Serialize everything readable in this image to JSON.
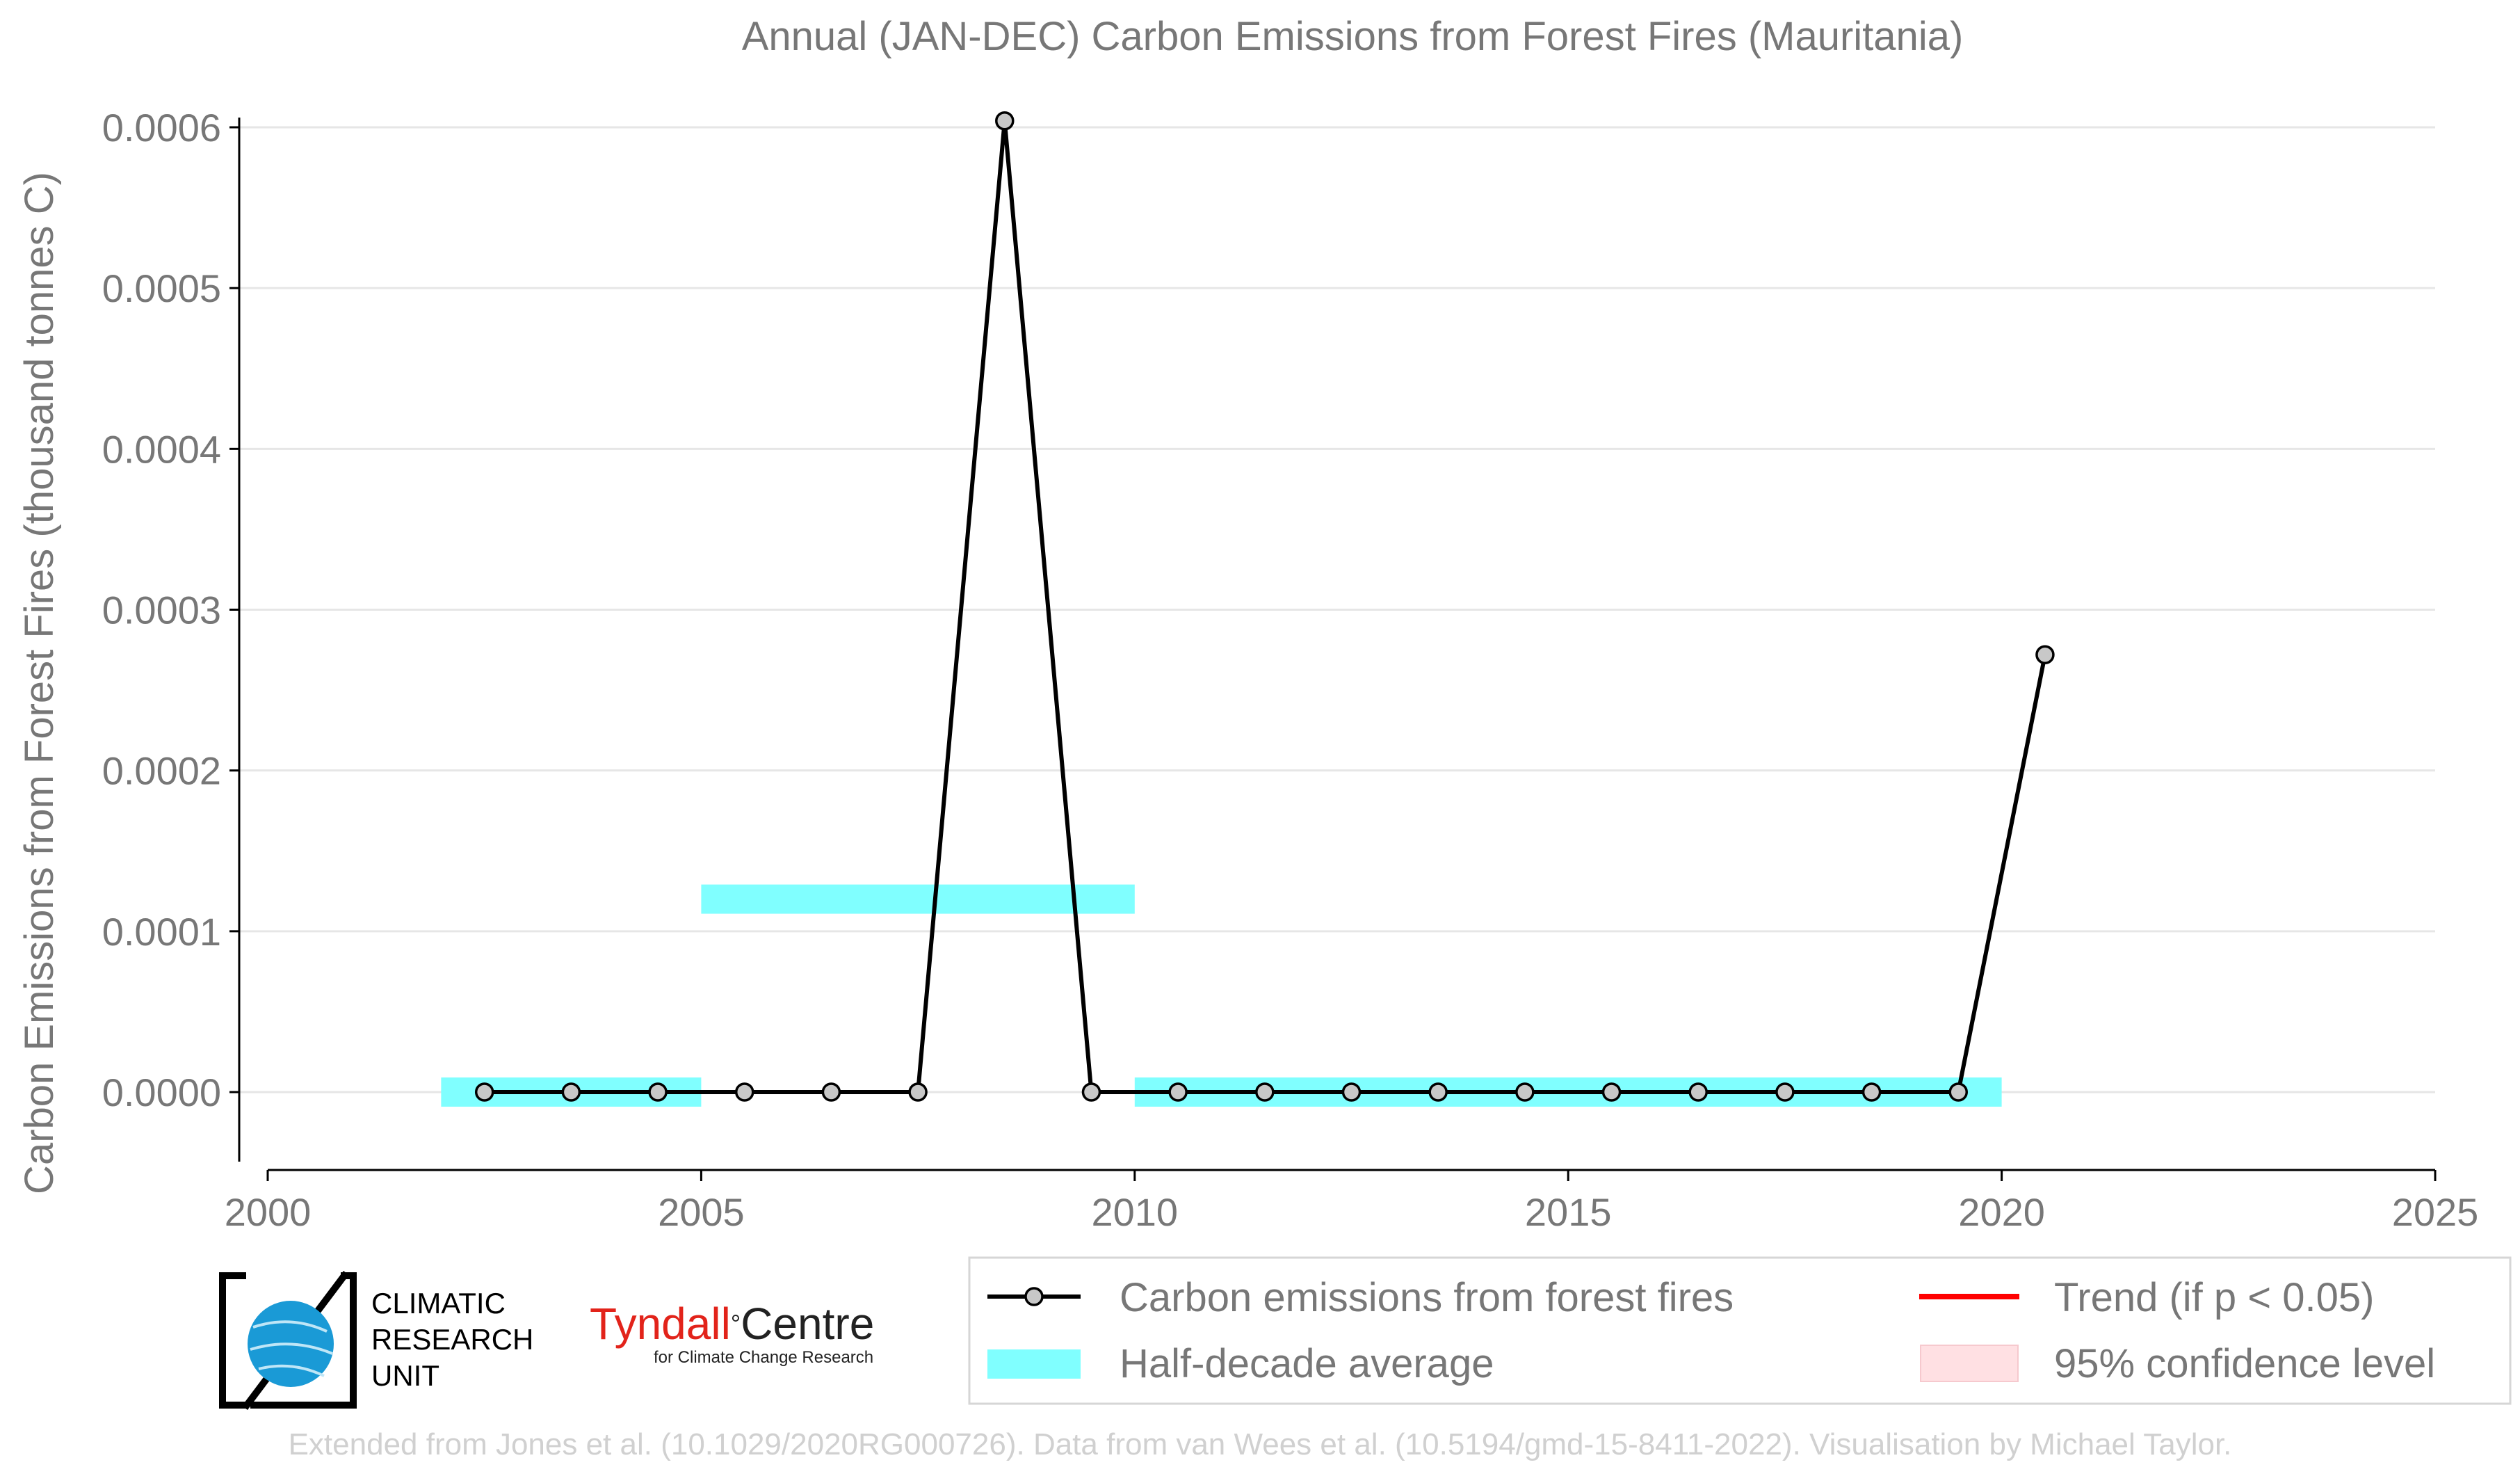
{
  "chart_data": {
    "type": "line",
    "title": "Annual (JAN-DEC) Carbon Emissions from Forest Fires (Mauritania)",
    "xlabel": "",
    "ylabel": "Carbon Emissions from Forest Fires (thousand tonnes C)",
    "xlim": [
      2000,
      2025
    ],
    "ylim": [
      -5e-05,
      0.00061
    ],
    "x_ticks": [
      "2000",
      "2005",
      "2010",
      "2015",
      "2020",
      "2025"
    ],
    "y_ticks": [
      "0.0000",
      "0.0001",
      "0.0002",
      "0.0003",
      "0.0004",
      "0.0005",
      "0.0006"
    ],
    "grid": "horizontal",
    "legend_position": "bottom-right",
    "series": [
      {
        "name": "Carbon emissions from forest fires",
        "color": "#000000",
        "marker_color": "#c8c8c8",
        "x": [
          2002.5,
          2003.5,
          2004.5,
          2005.5,
          2006.5,
          2007.5,
          2008.5,
          2009.5,
          2010.5,
          2011.5,
          2012.5,
          2013.5,
          2014.5,
          2015.5,
          2016.5,
          2017.5,
          2018.5,
          2019.5,
          2020.5
        ],
        "y": [
          0,
          0,
          0,
          0,
          0,
          0,
          0.000604,
          0,
          0,
          0,
          0,
          0,
          0,
          0,
          0,
          0,
          0,
          0,
          0.000272
        ]
      },
      {
        "name": "Half-decade average",
        "color": "#80ffff",
        "segments": [
          {
            "x_start": 2002,
            "x_end": 2005,
            "value": 0
          },
          {
            "x_start": 2005,
            "x_end": 2010,
            "value": 0.00012
          },
          {
            "x_start": 2010,
            "x_end": 2020,
            "value": 0
          }
        ]
      }
    ],
    "legend": [
      {
        "label": "Carbon emissions from forest fires",
        "kind": "line-marker",
        "color": "#000000"
      },
      {
        "label": "Trend (if p < 0.05)",
        "kind": "line",
        "color": "#ff0000"
      },
      {
        "label": "Half-decade average",
        "kind": "band",
        "color": "#80ffff"
      },
      {
        "label": "95% confidence level",
        "kind": "patch",
        "color": "#ffe0e3"
      }
    ]
  },
  "logos": {
    "cru_lines": [
      "CLIMATIC",
      "RESEARCH",
      "UNIT"
    ],
    "tyndall_red": "Tyndall",
    "tyndall_black": "Centre",
    "tyndall_degree": "°",
    "tyndall_sub": "for Climate Change Research"
  },
  "footer": "Extended from Jones et al. (10.1029/2020RG000726). Data from van Wees et al. (10.5194/gmd-15-8411-2022). Visualisation by Michael Taylor."
}
